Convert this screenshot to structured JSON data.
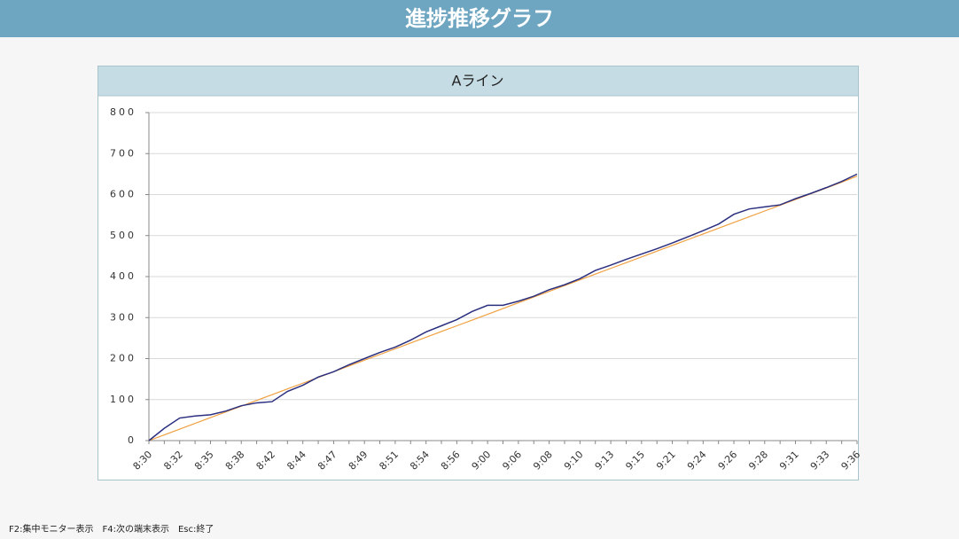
{
  "header": {
    "title": "進捗推移グラフ"
  },
  "chart_data": {
    "type": "line",
    "title": "Aライン",
    "categories": [
      "8:30",
      null,
      "8:32",
      null,
      "8:35",
      null,
      "8:38",
      null,
      "8:42",
      null,
      "8:44",
      null,
      "8:47",
      null,
      "8:49",
      null,
      "8:51",
      null,
      "8:54",
      null,
      "8:56",
      null,
      "9:00",
      null,
      "9:06",
      null,
      "9:08",
      null,
      "9:10",
      null,
      "9:13",
      null,
      "9:15",
      null,
      "9:21",
      null,
      "9:24",
      null,
      "9:26",
      null,
      "9:28",
      null,
      "9:31",
      null,
      "9:33",
      null,
      "9:36"
    ],
    "series": [
      {
        "color": "#f0a040",
        "values": [
          0,
          14,
          28,
          42,
          56,
          70,
          84,
          98,
          112,
          126,
          140,
          154,
          168,
          182,
          196,
          210,
          224,
          238,
          252,
          266,
          280,
          294,
          308,
          322,
          336,
          350,
          364,
          378,
          392,
          406,
          420,
          434,
          448,
          462,
          476,
          490,
          504,
          518,
          532,
          546,
          560,
          574,
          588,
          602,
          616,
          630,
          645
        ]
      },
      {
        "color": "#2b2f7f",
        "values": [
          0,
          30,
          55,
          60,
          63,
          72,
          85,
          92,
          95,
          120,
          135,
          155,
          168,
          185,
          200,
          215,
          228,
          245,
          265,
          280,
          295,
          315,
          330,
          330,
          340,
          352,
          368,
          380,
          395,
          415,
          428,
          442,
          455,
          468,
          482,
          497,
          512,
          528,
          552,
          565,
          570,
          575,
          590,
          603,
          617,
          632,
          650
        ]
      }
    ],
    "ylim": [
      0,
      800
    ],
    "yticks": [
      0,
      100,
      200,
      300,
      400,
      500,
      600,
      700,
      800
    ],
    "grid": true
  },
  "footer": {
    "text": "F2:集中モニター表示　F4:次の端末表示　Esc:終了"
  }
}
